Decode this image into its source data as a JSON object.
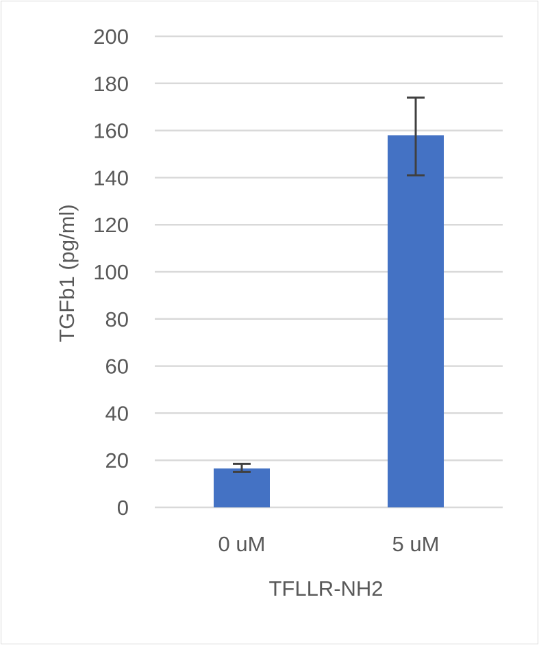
{
  "chart_data": {
    "type": "bar",
    "title": "",
    "xlabel": "TFLLR-NH2",
    "ylabel": "TGFb1 (pg/ml)",
    "categories": [
      "0 uM",
      "5 uM"
    ],
    "values": [
      16.5,
      158
    ],
    "error_bars": [
      {
        "low": 15,
        "high": 18.5
      },
      {
        "low": 141,
        "high": 174
      }
    ],
    "ylim": [
      0,
      200
    ],
    "yticks": [
      "0",
      "20",
      "40",
      "60",
      "80",
      "100",
      "120",
      "140",
      "160",
      "180",
      "200"
    ],
    "grid": true,
    "legend": "none",
    "colors": {
      "bar": "#4472c4",
      "grid": "#d9d9d9",
      "error_bar": "#404040",
      "text": "#595959"
    }
  }
}
